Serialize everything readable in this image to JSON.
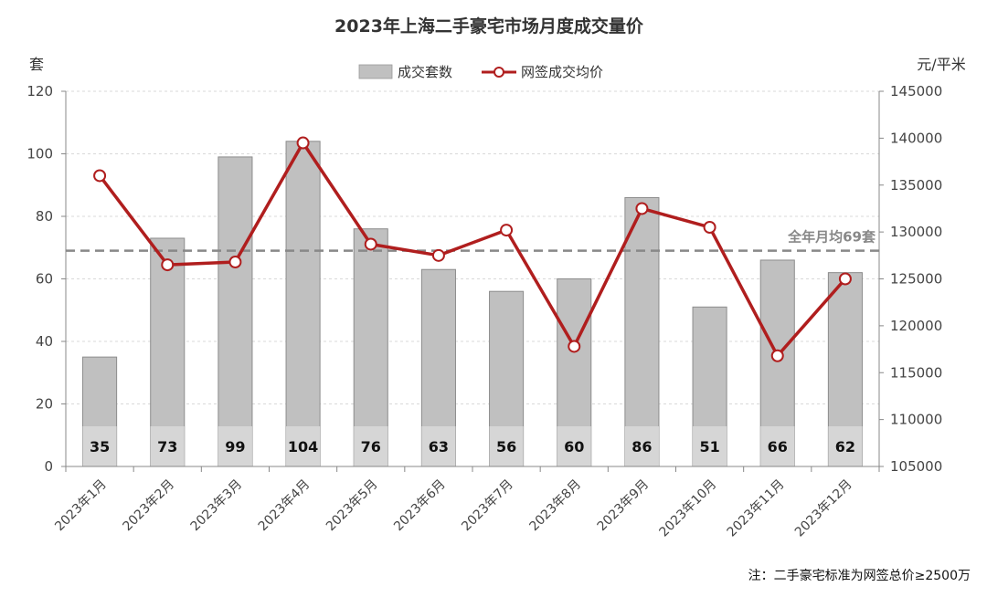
{
  "chart_data": {
    "type": "bar",
    "title": "2023年上海二手豪宅市场月度成交量价",
    "categories": [
      "2023年1月",
      "2023年2月",
      "2023年3月",
      "2023年4月",
      "2023年5月",
      "2023年6月",
      "2023年7月",
      "2023年8月",
      "2023年9月",
      "2023年10月",
      "2023年11月",
      "2023年12月"
    ],
    "series": [
      {
        "name": "成交套数",
        "type": "bar",
        "axis": "left",
        "color": "#c0c0c0",
        "values": [
          35,
          73,
          99,
          104,
          76,
          63,
          56,
          60,
          86,
          51,
          66,
          62
        ]
      },
      {
        "name": "网签成交均价",
        "type": "line",
        "axis": "right",
        "color": "#b01e1e",
        "values": [
          136000,
          126500,
          126800,
          139500,
          128700,
          127500,
          130200,
          117800,
          132500,
          130500,
          116800,
          125000
        ]
      }
    ],
    "left_axis": {
      "unit": "套",
      "ylim": [
        0,
        120
      ],
      "ticks": [
        "0",
        "20",
        "40",
        "60",
        "80",
        "100",
        "120"
      ]
    },
    "right_axis": {
      "unit": "元/平米",
      "ylim": [
        105000,
        145000
      ],
      "ticks": [
        "105000",
        "110000",
        "115000",
        "120000",
        "125000",
        "130000",
        "135000",
        "140000",
        "145000"
      ]
    },
    "reference_line": {
      "value": 69,
      "label": "全年月均69套",
      "axis": "left",
      "color": "#888888"
    },
    "grid": true,
    "legend_position": "top-center",
    "note": "注：二手豪宅标准为网签总价≥2500万"
  }
}
